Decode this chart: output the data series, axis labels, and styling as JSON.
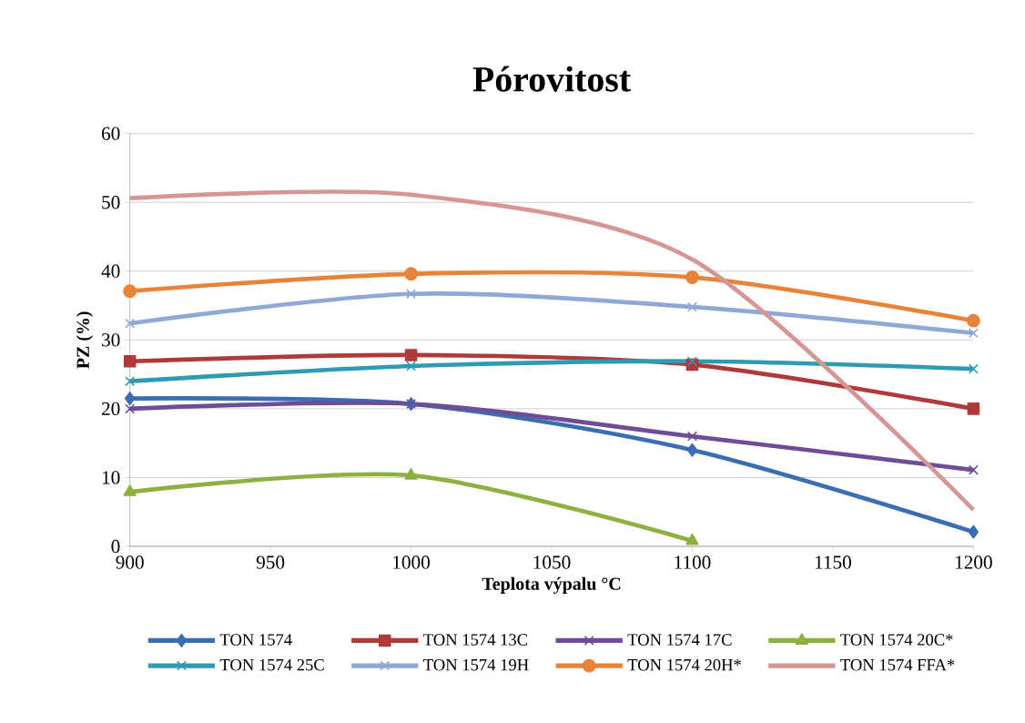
{
  "chart_data": {
    "type": "line",
    "title": "Pórovitost",
    "xlabel": "Teplota výpalu °C",
    "ylabel": "PZ (%)",
    "x": [
      900,
      1000,
      1100,
      1200
    ],
    "xlim": [
      900,
      1200
    ],
    "xticks": [
      900,
      950,
      1000,
      1050,
      1100,
      1150,
      1200
    ],
    "ylim": [
      0,
      60
    ],
    "yticks": [
      0,
      10,
      20,
      30,
      40,
      50,
      60
    ],
    "grid": "y",
    "legend": "bottom",
    "series": [
      {
        "name": "TON 1574",
        "color": "#3b6db3",
        "marker": "diamond",
        "values": [
          21.5,
          20.7,
          14.0,
          2.1
        ]
      },
      {
        "name": "TON 1574 13C",
        "color": "#b03a3a",
        "marker": "square",
        "values": [
          26.9,
          27.8,
          26.4,
          20.0
        ]
      },
      {
        "name": "TON 1574 17C",
        "color": "#6e4c96",
        "marker": "cross",
        "values": [
          20.0,
          20.7,
          16.0,
          11.1
        ]
      },
      {
        "name": "TON 1574 20C*",
        "color": "#8db040",
        "marker": "triangle",
        "values": [
          7.9,
          10.3,
          0.8,
          null
        ]
      },
      {
        "name": "TON 1574 25C",
        "color": "#2e9bb3",
        "marker": "cross",
        "values": [
          24.0,
          26.2,
          26.9,
          25.8
        ]
      },
      {
        "name": "TON 1574 19H",
        "color": "#8fa9d6",
        "marker": "cross",
        "values": [
          32.4,
          36.7,
          34.8,
          31.0
        ]
      },
      {
        "name": "TON 1574 20H*",
        "color": "#e8843a",
        "marker": "circle",
        "values": [
          37.1,
          39.6,
          39.1,
          32.8
        ]
      },
      {
        "name": "TON 1574 FFA*",
        "color": "#d69696",
        "marker": "none",
        "values": [
          50.6,
          51.1,
          41.7,
          5.3
        ]
      }
    ]
  }
}
